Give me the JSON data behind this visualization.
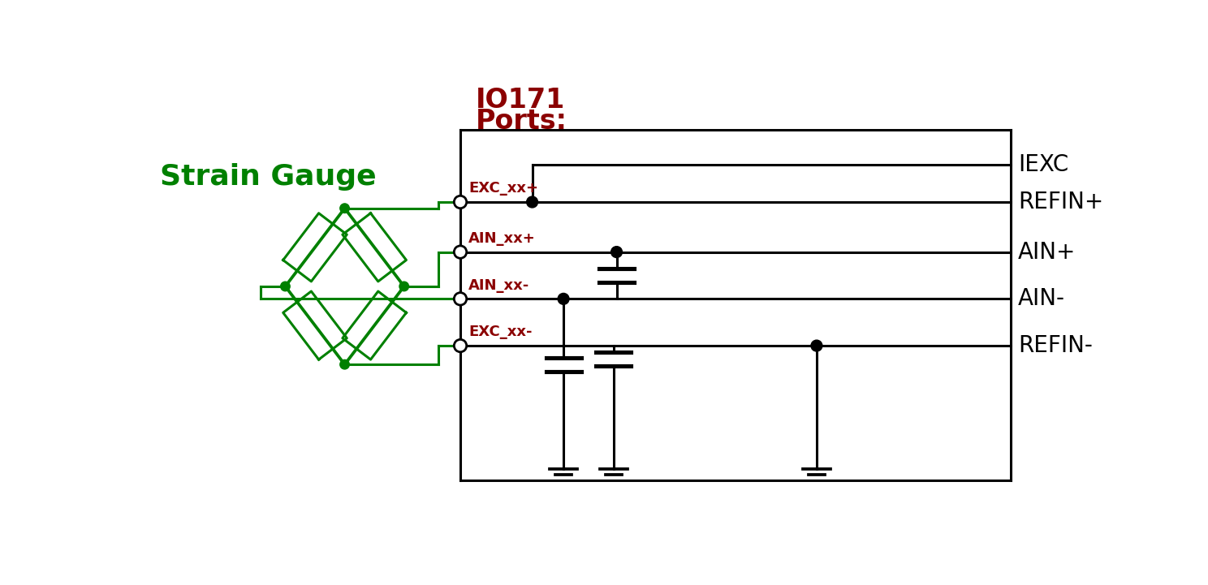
{
  "title_line1": "IO171",
  "title_line2": "Ports:",
  "strain_gauge_label": "Strain Gauge",
  "port_labels": [
    "EXC_xx+",
    "AIN_xx+",
    "AIN_xx-",
    "EXC_xx-"
  ],
  "signal_labels": [
    "IEXC",
    "REFIN+",
    "AIN+",
    "AIN-",
    "REFIN-"
  ],
  "green_color": "#008000",
  "dark_red_color": "#8B0000",
  "black_color": "#000000",
  "bg_color": "#FFFFFF",
  "lw_main": 2.2
}
